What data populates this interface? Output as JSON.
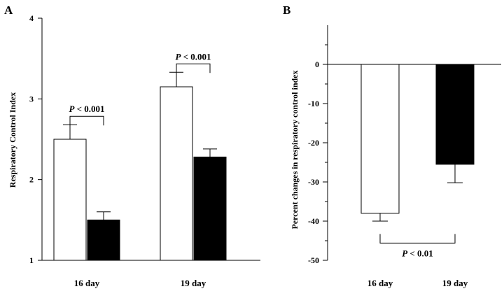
{
  "chart_data": [
    {
      "type": "bar",
      "panel_label": "A",
      "categories": [
        "16 day",
        "19 day"
      ],
      "ylabel": "Respiratory Control Index",
      "ylim": [
        1,
        4
      ],
      "yticks": [
        1,
        2,
        3,
        4
      ],
      "series": [
        {
          "fill": "#ffffff",
          "values": [
            2.5,
            3.15
          ],
          "errors": [
            0.18,
            0.18
          ]
        },
        {
          "fill": "#000000",
          "values": [
            1.5,
            2.28
          ],
          "errors": [
            0.1,
            0.1
          ]
        }
      ],
      "annotations": [
        {
          "category": 0,
          "text": "< 0.001",
          "prefix": "P"
        },
        {
          "category": 1,
          "text": "< 0.001",
          "prefix": "P"
        }
      ]
    },
    {
      "type": "bar",
      "panel_label": "B",
      "categories": [
        "16 day",
        "19 day"
      ],
      "ylabel": "Percent changes in respiratory control index",
      "ylim": [
        -50,
        10
      ],
      "yticks": [
        0,
        -10,
        -20,
        -30,
        -40,
        -50
      ],
      "series": [
        {
          "fill": "#ffffff",
          "values": [
            -38,
            null
          ],
          "errors": [
            2,
            null
          ]
        },
        {
          "fill": "#000000",
          "values": [
            null,
            -25.5
          ],
          "errors": [
            null,
            4.7
          ]
        }
      ],
      "annotations": [
        {
          "between": [
            0,
            1
          ],
          "text": "< 0.01",
          "prefix": "P"
        }
      ]
    }
  ]
}
